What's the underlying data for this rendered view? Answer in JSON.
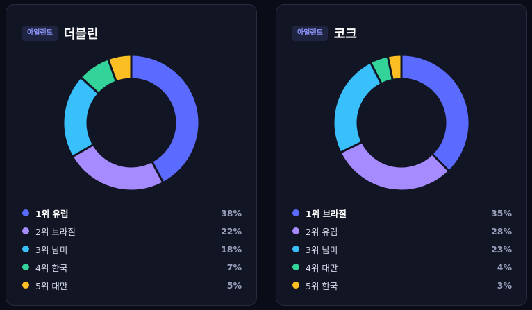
{
  "chart_data": [
    {
      "type": "pie",
      "tag": "아일랜드",
      "title": "더블린",
      "categories": [
        "1위 유럽",
        "2위 브라질",
        "3위 남미",
        "4위 한국",
        "5위 대만"
      ],
      "values": [
        38,
        22,
        18,
        7,
        5
      ],
      "value_labels": [
        "38%",
        "22%",
        "18%",
        "7%",
        "5%"
      ],
      "colors": [
        "#5b6bff",
        "#a68bff",
        "#39c0fa",
        "#34d399",
        "#fbbf24"
      ],
      "legend": "bottom"
    },
    {
      "type": "pie",
      "tag": "아일랜드",
      "title": "코크",
      "categories": [
        "1위 브라질",
        "2위 유럽",
        "3위 남미",
        "4위 대만",
        "5위 한국"
      ],
      "values": [
        35,
        28,
        23,
        4,
        3
      ],
      "value_labels": [
        "35%",
        "28%",
        "23%",
        "4%",
        "3%"
      ],
      "colors": [
        "#5b6bff",
        "#a68bff",
        "#39c0fa",
        "#34d399",
        "#fbbf24"
      ],
      "legend": "bottom"
    }
  ]
}
